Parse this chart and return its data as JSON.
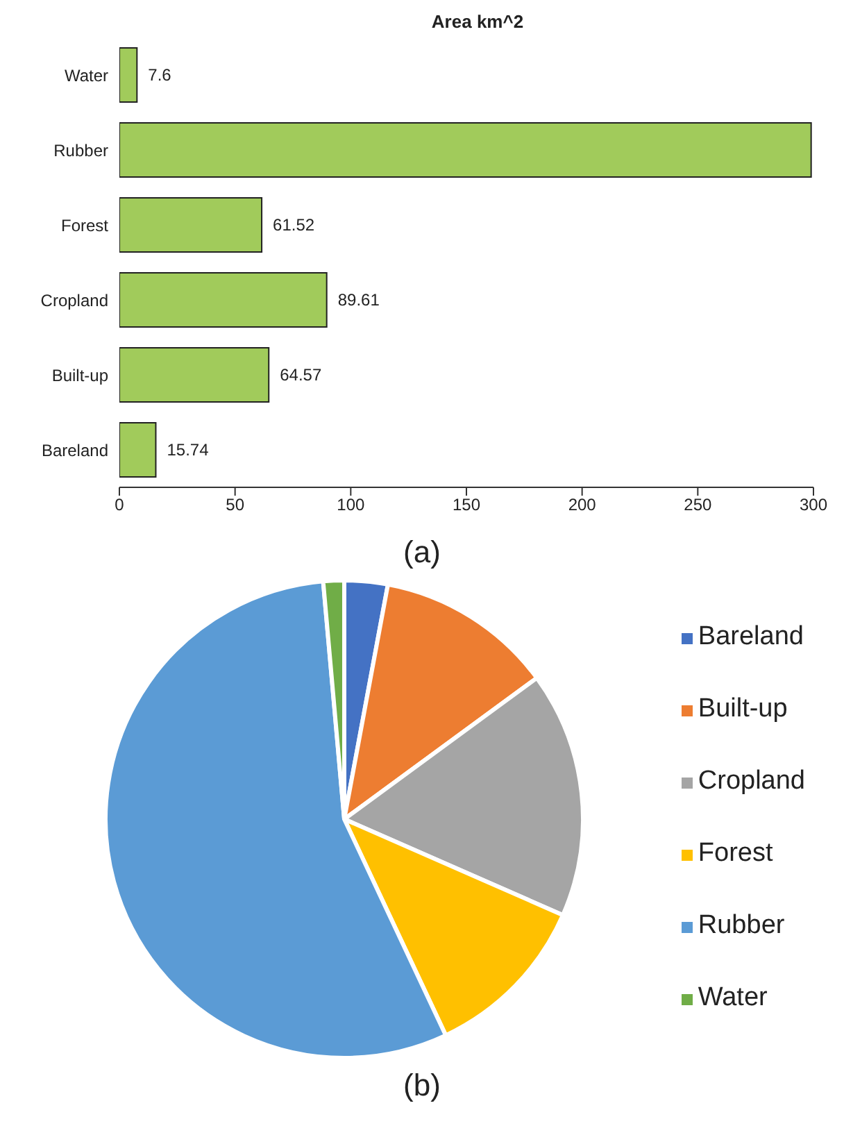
{
  "chart_data": [
    {
      "type": "bar",
      "title": "Area km^2",
      "orientation": "horizontal",
      "categories": [
        "Water",
        "Rubber",
        "Forest",
        "Cropland",
        "Built-up",
        "Bareland"
      ],
      "values": [
        7.6,
        299,
        61.52,
        89.61,
        64.57,
        15.74
      ],
      "value_labels": [
        "7.6",
        null,
        "61.52",
        "89.61",
        "64.57",
        "15.74"
      ],
      "color": "#a1cb5b",
      "xlim": [
        0,
        300
      ],
      "xticks": [
        0,
        50,
        100,
        150,
        200,
        250,
        300
      ],
      "legend": false,
      "annotations": [
        "(a)"
      ]
    },
    {
      "type": "pie",
      "categories": [
        "Bareland",
        "Built-up",
        "Cropland",
        "Forest",
        "Rubber",
        "Water"
      ],
      "values": [
        2.93,
        12.0,
        16.65,
        11.43,
        55.58,
        1.41
      ],
      "colors": [
        "#4472c4",
        "#ed7d31",
        "#a5a5a5",
        "#ffc000",
        "#5b9bd5",
        "#70ad47"
      ],
      "legend": "right",
      "annotations": [
        "(b)"
      ]
    }
  ]
}
